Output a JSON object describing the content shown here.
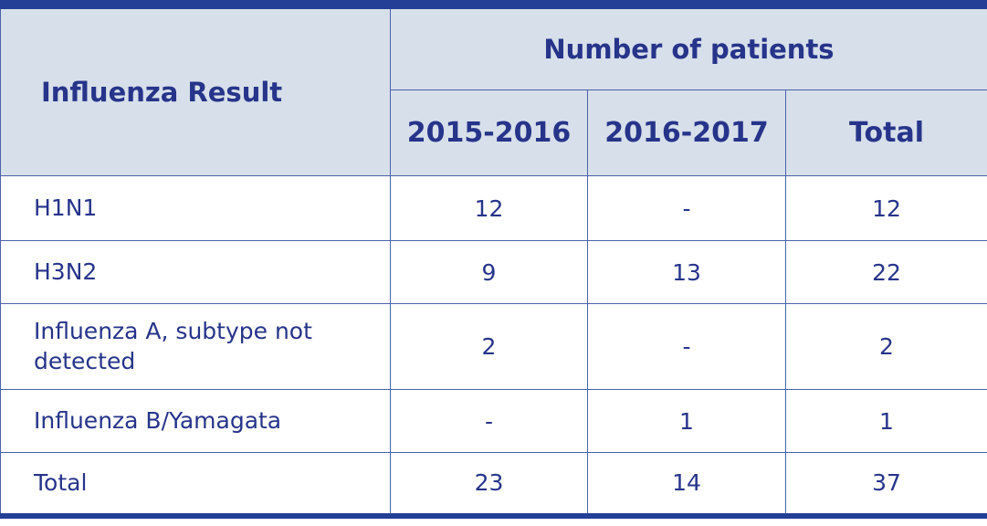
{
  "table": {
    "header": {
      "row_label": "Influenza Result",
      "group": "Number of patients",
      "columns": [
        "2015-2016",
        "2016-2017",
        "Total"
      ]
    },
    "rows": [
      [
        "H1N1",
        12,
        "-",
        12
      ],
      [
        "H3N2",
        9,
        13,
        22
      ],
      [
        "Influenza A, subtype not detected",
        2,
        "-",
        2
      ],
      [
        "Influenza B/Yamagata",
        "-",
        1,
        1
      ],
      [
        "Total",
        23,
        14,
        37
      ]
    ]
  }
}
